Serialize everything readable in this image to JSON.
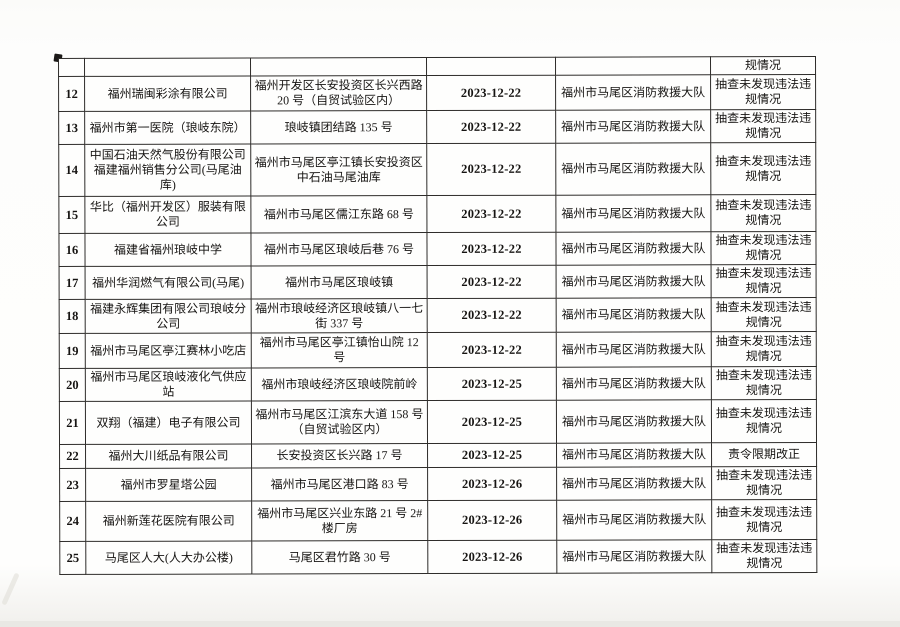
{
  "colors": {
    "border": "#2e2c2a",
    "text": "#161412",
    "paper": "#fefefd",
    "page_bg": "#f7f6f3"
  },
  "table": {
    "column_keys": [
      "no",
      "name",
      "address",
      "date",
      "agency",
      "result"
    ],
    "carryover_row": {
      "no": "",
      "name": "",
      "address": "",
      "date": "",
      "agency": "",
      "result": "规情况"
    },
    "rows": [
      {
        "no": "12",
        "name": "福州瑞闽彩涂有限公司",
        "address": "福州开发区长安投资区长兴西路 20 号（自贸试验区内）",
        "date": "2023-12-22",
        "agency": "福州市马尾区消防救援大队",
        "result": "抽查未发现违法违规情况"
      },
      {
        "no": "13",
        "name": "福州市第一医院（琅岐东院）",
        "address": "琅岐镇团结路 135 号",
        "date": "2023-12-22",
        "agency": "福州市马尾区消防救援大队",
        "result": "抽查未发现违法违规情况"
      },
      {
        "no": "14",
        "name": "中国石油天然气股份有限公司福建福州销售分公司(马尾油库)",
        "address": "福州市马尾区亭江镇长安投资区中石油马尾油库",
        "date": "2023-12-22",
        "agency": "福州市马尾区消防救援大队",
        "result": "抽查未发现违法违规情况"
      },
      {
        "no": "15",
        "name": "华比（福州开发区）服装有限公司",
        "address": "福州市马尾区儒江东路 68 号",
        "date": "2023-12-22",
        "agency": "福州市马尾区消防救援大队",
        "result": "抽查未发现违法违规情况"
      },
      {
        "no": "16",
        "name": "福建省福州琅岐中学",
        "address": "福州市马尾区琅岐后巷 76 号",
        "date": "2023-12-22",
        "agency": "福州市马尾区消防救援大队",
        "result": "抽查未发现违法违规情况"
      },
      {
        "no": "17",
        "name": "福州华润燃气有限公司(马尾)",
        "address": "福州市马尾区琅岐镇",
        "date": "2023-12-22",
        "agency": "福州市马尾区消防救援大队",
        "result": "抽查未发现违法违规情况"
      },
      {
        "no": "18",
        "name": "福建永辉集团有限公司琅岐分公司",
        "address": "福州市琅岐经济区琅岐镇八一七街 337 号",
        "date": "2023-12-22",
        "agency": "福州市马尾区消防救援大队",
        "result": "抽查未发现违法违规情况"
      },
      {
        "no": "19",
        "name": "福州市马尾区亭江赛林小吃店",
        "address": "福州市马尾区亭江镇怡山院 12 号",
        "date": "2023-12-22",
        "agency": "福州市马尾区消防救援大队",
        "result": "抽查未发现违法违规情况"
      },
      {
        "no": "20",
        "name": "福州市马尾区琅岐液化气供应站",
        "address": "福州市琅岐经济区琅岐院前岭",
        "date": "2023-12-25",
        "agency": "福州市马尾区消防救援大队",
        "result": "抽查未发现违法违规情况"
      },
      {
        "no": "21",
        "name": "双翔（福建）电子有限公司",
        "address": "福州市马尾区江滨东大道 158 号（自贸试验区内）",
        "date": "2023-12-25",
        "agency": "福州市马尾区消防救援大队",
        "result": "抽查未发现违法违规情况"
      },
      {
        "no": "22",
        "name": "福州大川纸品有限公司",
        "address": "长安投资区长兴路 17 号",
        "date": "2023-12-25",
        "agency": "福州市马尾区消防救援大队",
        "result": "责令限期改正"
      },
      {
        "no": "23",
        "name": "福州市罗星塔公园",
        "address": "福州市马尾区港口路 83 号",
        "date": "2023-12-26",
        "agency": "福州市马尾区消防救援大队",
        "result": "抽查未发现违法违规情况"
      },
      {
        "no": "24",
        "name": "福州新莲花医院有限公司",
        "address": "福州市马尾区兴业东路 21 号 2#楼厂房",
        "date": "2023-12-26",
        "agency": "福州市马尾区消防救援大队",
        "result": "抽查未发现违法违规情况"
      },
      {
        "no": "25",
        "name": "马尾区人大(人大办公楼)",
        "address": "马尾区君竹路 30 号",
        "date": "2023-12-26",
        "agency": "福州市马尾区消防救援大队",
        "result": "抽查未发现违法违规情况"
      }
    ]
  }
}
